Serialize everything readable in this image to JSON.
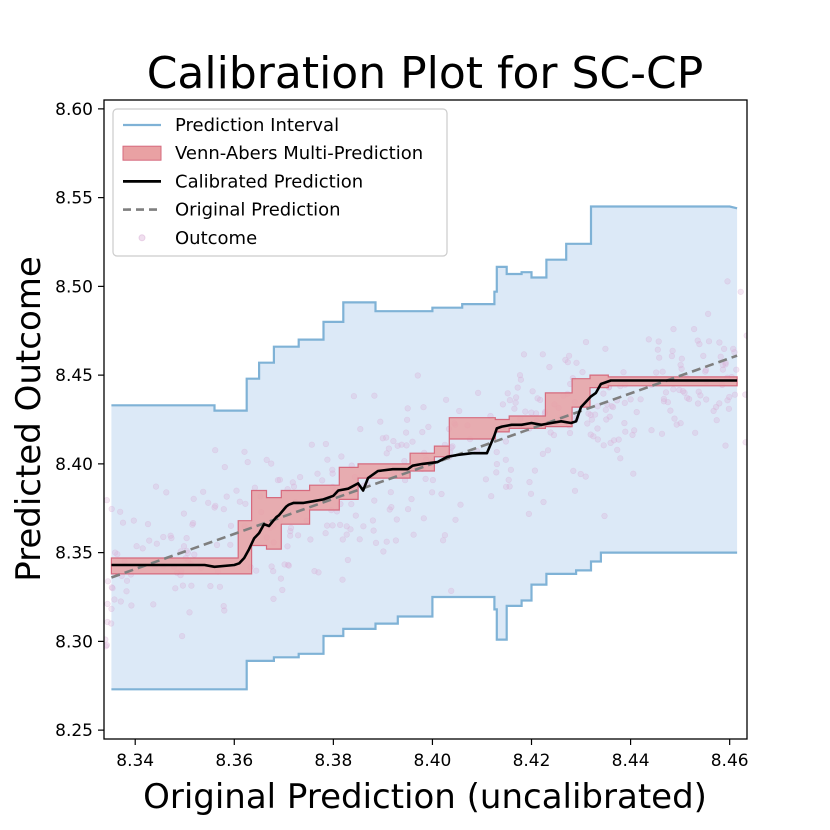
{
  "chart_data": {
    "type": "line",
    "title": "Calibration Plot for SC-CP",
    "xlabel": "Original Prediction (uncalibrated)",
    "ylabel": "Predicted Outcome",
    "xlim": [
      8.3337,
      8.4635
    ],
    "ylim": [
      8.245,
      8.605
    ],
    "x_ticks": [
      "8.34",
      "8.36",
      "8.38",
      "8.40",
      "8.42",
      "8.44",
      "8.46"
    ],
    "y_ticks": [
      "8.25",
      "8.30",
      "8.35",
      "8.40",
      "8.45",
      "8.50",
      "8.55",
      "8.60"
    ],
    "grid": false,
    "legend_position": "top-left",
    "legend": [
      {
        "label": "Prediction Interval",
        "kind": "line",
        "color": "#7fb2d6"
      },
      {
        "label": "Venn-Abers Multi-Prediction",
        "kind": "patch",
        "color": "#e8989a"
      },
      {
        "label": "Calibrated Prediction",
        "kind": "line",
        "color": "#000000"
      },
      {
        "label": "Original Prediction",
        "kind": "dashed",
        "color": "#7f7f7f"
      },
      {
        "label": "Outcome",
        "kind": "dot",
        "color": "#d9b0d6"
      }
    ],
    "series": [
      {
        "name": "Prediction Interval",
        "color": "#7fb2d6",
        "fill": "#dce9f7",
        "x": [
          8.3352,
          8.356,
          8.356,
          8.3625,
          8.3625,
          8.365,
          8.365,
          8.368,
          8.368,
          8.373,
          8.373,
          8.378,
          8.378,
          8.382,
          8.382,
          8.3885,
          8.3885,
          8.393,
          8.393,
          8.4,
          8.4,
          8.406,
          8.406,
          8.4125,
          8.4125,
          8.413,
          8.413,
          8.415,
          8.415,
          8.418,
          8.418,
          8.42,
          8.42,
          8.423,
          8.423,
          8.427,
          8.427,
          8.429,
          8.429,
          8.432,
          8.432,
          8.434,
          8.434,
          8.46,
          8.4615
        ],
        "upper": [
          8.433,
          8.433,
          8.43,
          8.43,
          8.448,
          8.448,
          8.457,
          8.457,
          8.466,
          8.466,
          8.47,
          8.47,
          8.48,
          8.48,
          8.491,
          8.491,
          8.486,
          8.486,
          8.486,
          8.486,
          8.488,
          8.488,
          8.49,
          8.49,
          8.497,
          8.497,
          8.511,
          8.511,
          8.507,
          8.507,
          8.508,
          8.508,
          8.505,
          8.505,
          8.515,
          8.515,
          8.524,
          8.524,
          8.524,
          8.524,
          8.545,
          8.545,
          8.545,
          8.545,
          8.544
        ],
        "lower": [
          8.273,
          8.273,
          8.273,
          8.273,
          8.289,
          8.289,
          8.289,
          8.289,
          8.291,
          8.291,
          8.293,
          8.293,
          8.303,
          8.303,
          8.307,
          8.307,
          8.31,
          8.31,
          8.314,
          8.314,
          8.325,
          8.325,
          8.325,
          8.325,
          8.318,
          8.318,
          8.301,
          8.301,
          8.32,
          8.32,
          8.323,
          8.323,
          8.332,
          8.332,
          8.338,
          8.338,
          8.338,
          8.338,
          8.34,
          8.34,
          8.345,
          8.345,
          8.35,
          8.35,
          8.35
        ]
      },
      {
        "name": "Venn-Abers Multi-Prediction",
        "color": "#e8989a",
        "x": [
          8.3352,
          8.3608,
          8.3608,
          8.3635,
          8.3635,
          8.3665,
          8.3665,
          8.3695,
          8.3695,
          8.3752,
          8.3752,
          8.3812,
          8.3812,
          8.385,
          8.385,
          8.3955,
          8.3955,
          8.4004,
          8.4004,
          8.4034,
          8.4034,
          8.4127,
          8.4127,
          8.4155,
          8.4155,
          8.4228,
          8.4228,
          8.4282,
          8.4282,
          8.4318,
          8.4318,
          8.4355,
          8.4355,
          8.4615
        ],
        "upper": [
          8.347,
          8.347,
          8.368,
          8.368,
          8.385,
          8.385,
          8.381,
          8.381,
          8.385,
          8.385,
          8.388,
          8.388,
          8.398,
          8.398,
          8.4,
          8.4,
          8.406,
          8.406,
          8.41,
          8.41,
          8.426,
          8.426,
          8.425,
          8.425,
          8.427,
          8.427,
          8.44,
          8.44,
          8.448,
          8.448,
          8.45,
          8.45,
          8.449,
          8.449
        ],
        "lower": [
          8.338,
          8.338,
          8.338,
          8.338,
          8.354,
          8.354,
          8.352,
          8.352,
          8.366,
          8.366,
          8.374,
          8.374,
          8.38,
          8.38,
          8.392,
          8.392,
          8.396,
          8.396,
          8.404,
          8.404,
          8.414,
          8.414,
          8.418,
          8.418,
          8.42,
          8.42,
          8.421,
          8.421,
          8.432,
          8.432,
          8.443,
          8.443,
          8.444,
          8.444
        ]
      },
      {
        "name": "Calibrated Prediction",
        "color": "#000000",
        "x": [
          8.3352,
          8.354,
          8.356,
          8.36,
          8.361,
          8.362,
          8.363,
          8.364,
          8.365,
          8.366,
          8.367,
          8.3685,
          8.369,
          8.3705,
          8.371,
          8.372,
          8.374,
          8.376,
          8.378,
          8.38,
          8.381,
          8.383,
          8.385,
          8.386,
          8.387,
          8.389,
          8.392,
          8.395,
          8.396,
          8.398,
          8.401,
          8.403,
          8.405,
          8.408,
          8.41,
          8.411,
          8.4125,
          8.413,
          8.414,
          8.416,
          8.418,
          8.42,
          8.422,
          8.424,
          8.426,
          8.428,
          8.429,
          8.43,
          8.431,
          8.432,
          8.433,
          8.434,
          8.436,
          8.44,
          8.445,
          8.452,
          8.4615
        ],
        "y": [
          8.343,
          8.343,
          8.342,
          8.343,
          8.344,
          8.347,
          8.352,
          8.358,
          8.361,
          8.366,
          8.365,
          8.37,
          8.371,
          8.376,
          8.377,
          8.378,
          8.378,
          8.379,
          8.38,
          8.382,
          8.385,
          8.386,
          8.389,
          8.385,
          8.392,
          8.396,
          8.397,
          8.397,
          8.399,
          8.4,
          8.401,
          8.404,
          8.405,
          8.406,
          8.406,
          8.406,
          8.416,
          8.42,
          8.421,
          8.422,
          8.422,
          8.423,
          8.422,
          8.423,
          8.424,
          8.423,
          8.424,
          8.432,
          8.435,
          8.438,
          8.44,
          8.445,
          8.447,
          8.447,
          8.447,
          8.447,
          8.447
        ]
      },
      {
        "name": "Original Prediction",
        "color": "#7f7f7f",
        "x": [
          8.3352,
          8.4615
        ],
        "y": [
          8.336,
          8.461
        ]
      },
      {
        "name": "Outcome",
        "color": "#d9b0d6",
        "count": 400,
        "center": [
          8.403,
          8.4
        ],
        "spread": 0.05
      }
    ]
  }
}
